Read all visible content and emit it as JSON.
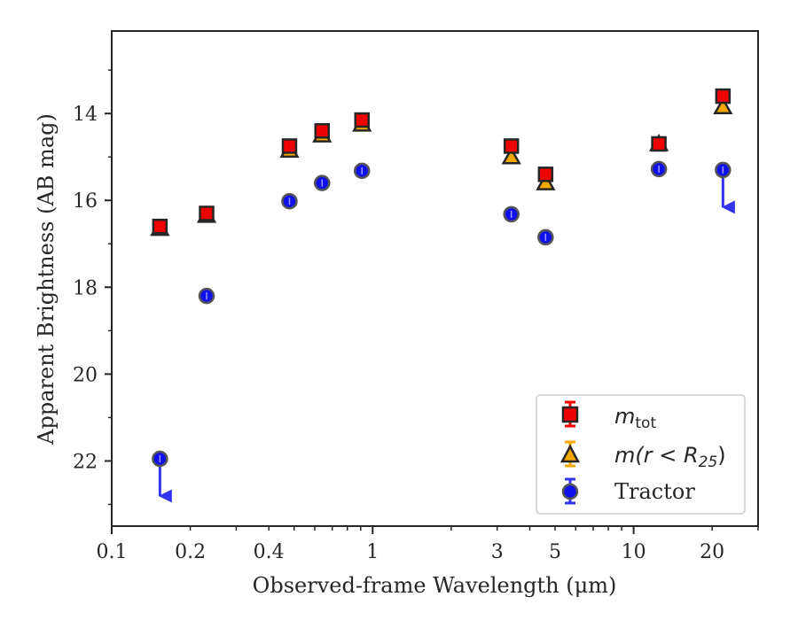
{
  "chart_data": {
    "type": "scatter",
    "title": "",
    "xlabel": "Observed-frame Wavelength (μm)",
    "ylabel": "Apparent Brightness (AB mag)",
    "xscale": "log",
    "xlim": [
      0.1,
      30
    ],
    "ylim": [
      12.1,
      23.5
    ],
    "y_inverted": true,
    "xticks": [
      0.1,
      0.2,
      0.4,
      1,
      3,
      5,
      10,
      20
    ],
    "xtick_labels": [
      "0.1",
      "0.2",
      "0.4",
      "1",
      "3",
      "5",
      "10",
      "20"
    ],
    "yticks": [
      14,
      16,
      18,
      20,
      22
    ],
    "ytick_labels": [
      "14",
      "16",
      "18",
      "20",
      "22"
    ],
    "legend_position": "lower-right",
    "series": [
      {
        "name": "m_tot",
        "legend_main": "m",
        "legend_sub": "tot",
        "marker": "square",
        "color": "#ee0000",
        "x": [
          0.153,
          0.231,
          0.48,
          0.64,
          0.91,
          3.4,
          4.6,
          12.5,
          22.0
        ],
        "y": [
          16.6,
          16.3,
          14.75,
          14.4,
          14.15,
          14.75,
          15.4,
          14.7,
          13.6
        ],
        "upper_limit": [
          false,
          false,
          false,
          false,
          false,
          false,
          false,
          false,
          false
        ]
      },
      {
        "name": "m(r < R25)",
        "legend_main": "m(r < R",
        "legend_sub": "25",
        "legend_tail": ")",
        "marker": "triangle",
        "color": "#f5a800",
        "x": [
          0.153,
          0.231,
          0.48,
          0.64,
          0.91,
          3.4,
          4.6,
          12.5,
          22.0
        ],
        "y": [
          16.65,
          16.35,
          14.85,
          14.5,
          14.25,
          15.0,
          15.6,
          14.7,
          13.85
        ],
        "upper_limit": [
          false,
          false,
          false,
          false,
          false,
          false,
          false,
          false,
          false
        ]
      },
      {
        "name": "Tractor",
        "marker": "circle",
        "color": "#1010ee",
        "x": [
          0.153,
          0.231,
          0.48,
          0.64,
          0.91,
          3.4,
          4.6,
          12.5,
          22.0
        ],
        "y": [
          21.95,
          18.2,
          16.02,
          15.6,
          15.32,
          16.32,
          16.85,
          15.28,
          15.3
        ],
        "upper_limit": [
          true,
          false,
          false,
          false,
          false,
          false,
          false,
          false,
          true
        ]
      }
    ]
  }
}
